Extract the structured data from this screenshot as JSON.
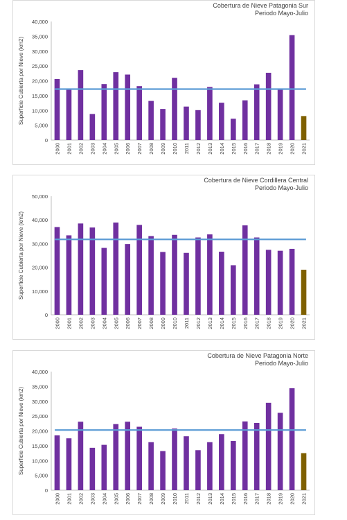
{
  "colors": {
    "bar": "#7030a0",
    "bar_last": "#7f6000",
    "average": "#5b9bd5",
    "axis": "#bfbfbf",
    "text": "#404040"
  },
  "chart_data": [
    {
      "type": "bar",
      "title": [
        "Cobertura de Nieve Patagonia Sur",
        "Periodo Mayo-Julio"
      ],
      "ylabel": "Superficie Cubierta por Nieve (km2)",
      "categories": [
        "2000",
        "2001",
        "2002",
        "2003",
        "2004",
        "2005",
        "2006",
        "2007",
        "2008",
        "2009",
        "2010",
        "2011",
        "2012",
        "2013",
        "2014",
        "2015",
        "2016",
        "2017",
        "2018",
        "2019",
        "2020",
        "2021"
      ],
      "values": [
        20600,
        17300,
        23600,
        8800,
        18900,
        22900,
        22100,
        18200,
        13200,
        10500,
        21000,
        11300,
        10100,
        17900,
        12600,
        7200,
        13400,
        18800,
        22700,
        17100,
        35400,
        8100
      ],
      "average": 17200,
      "ylim": [
        0,
        40000
      ],
      "yticks": [
        "0",
        "5,000",
        "10,000",
        "15,000",
        "20,000",
        "25,000",
        "30,000",
        "35,000",
        "40,000"
      ]
    },
    {
      "type": "bar",
      "title": [
        "Cobertura de Nieve Cordillera Central",
        "Periodo Mayo-Julio"
      ],
      "ylabel": "Superficie Cubierta por Nieve (km2)",
      "categories": [
        "2000",
        "2001",
        "2002",
        "2003",
        "2004",
        "2005",
        "2006",
        "2007",
        "2008",
        "2009",
        "2010",
        "2011",
        "2012",
        "2013",
        "2014",
        "2015",
        "2016",
        "2017",
        "2018",
        "2019",
        "2020",
        "2021"
      ],
      "values": [
        37000,
        33500,
        38500,
        36800,
        28200,
        38900,
        29800,
        37900,
        33200,
        26500,
        33700,
        26100,
        32600,
        33900,
        26600,
        20900,
        37700,
        32600,
        27400,
        27000,
        27800,
        19000
      ],
      "average": 31800,
      "ylim": [
        0,
        50000
      ],
      "yticks": [
        "0",
        "10,000",
        "20,000",
        "30,000",
        "40,000",
        "50,000"
      ]
    },
    {
      "type": "bar",
      "title": [
        "Cobertura de Nieve Patagonia Norte",
        "Periodo Mayo-Julio"
      ],
      "ylabel": "Superficie Cubierta por Nieve (km2)",
      "categories": [
        "2000",
        "2001",
        "2002",
        "2003",
        "2004",
        "2005",
        "2006",
        "2007",
        "2008",
        "2009",
        "2010",
        "2011",
        "2012",
        "2013",
        "2014",
        "2015",
        "2016",
        "2017",
        "2018",
        "2019",
        "2020",
        "2021"
      ],
      "values": [
        18500,
        17500,
        23100,
        14300,
        15300,
        22300,
        23100,
        21400,
        16200,
        13200,
        20800,
        18200,
        13500,
        16200,
        18900,
        16600,
        23200,
        22700,
        29500,
        26100,
        34400,
        12500
      ],
      "average": 20300,
      "ylim": [
        0,
        40000
      ],
      "yticks": [
        "0",
        "5,000",
        "10,000",
        "15,000",
        "20,000",
        "25,000",
        "30,000",
        "35,000",
        "40,000"
      ]
    }
  ]
}
